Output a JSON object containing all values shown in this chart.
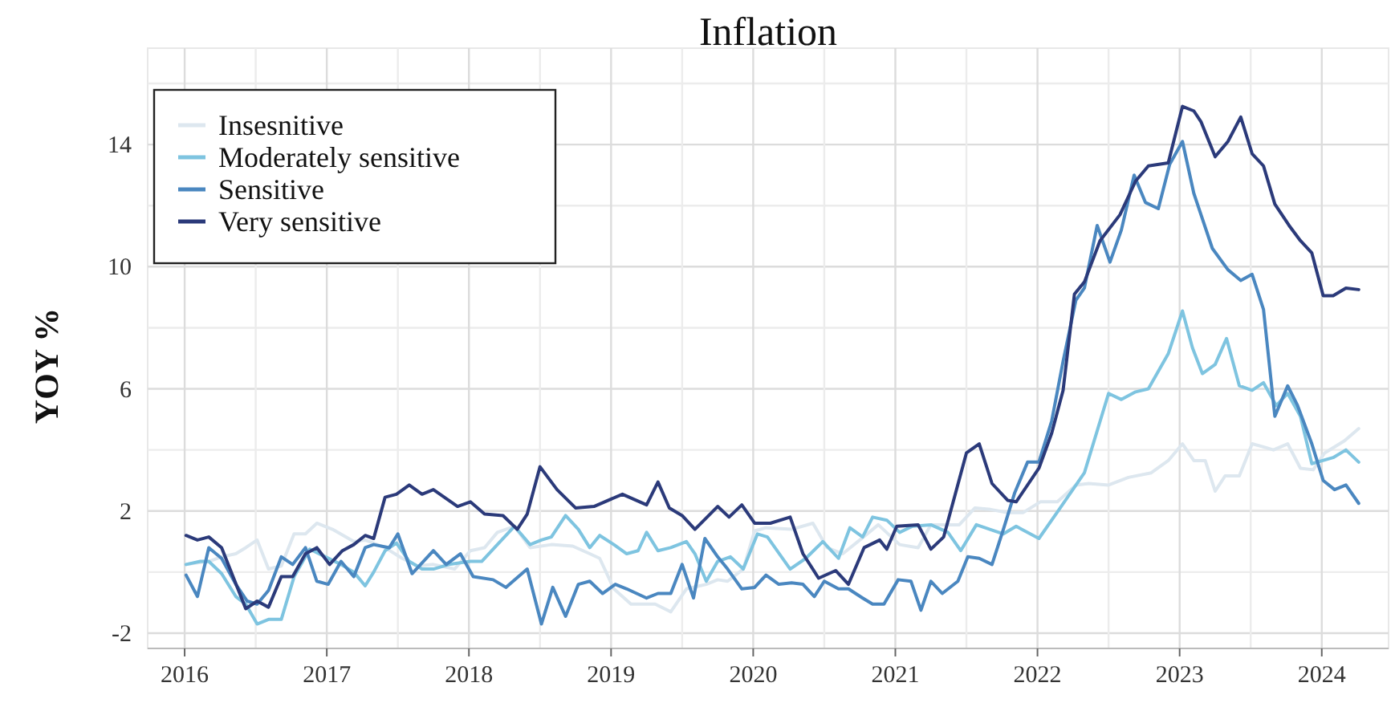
{
  "chart_data": {
    "type": "line",
    "title": "Inflation",
    "ylabel": "YOY %",
    "xlim": [
      2015.74,
      2024.47
    ],
    "ylim": [
      -2.5,
      16
    ],
    "xticks": [
      2016,
      {
        "value": 2016.5,
        "label": null
      },
      2017,
      {
        "value": 2017.5,
        "label": null
      },
      2018,
      {
        "value": 2018.5,
        "label": null
      },
      2019,
      {
        "value": 2019.5,
        "label": null
      },
      2020,
      {
        "value": 2020.5,
        "label": null
      },
      2021,
      {
        "value": 2021.5,
        "label": null
      },
      2022,
      {
        "value": 2022.5,
        "label": null
      },
      2023,
      {
        "value": 2023.5,
        "label": null
      },
      2024
    ],
    "yticks": [
      -2,
      {
        "value": 0,
        "label": null
      },
      2,
      {
        "value": 4,
        "label": null
      },
      6,
      {
        "value": 8,
        "label": null
      },
      10,
      {
        "value": 12,
        "label": null
      },
      14,
      {
        "value": 16,
        "label": null
      }
    ],
    "grid": true,
    "legend": "top left",
    "line_style": "solid",
    "marker": "none",
    "series": [
      {
        "name": "Insesnitive",
        "color": "#dde7ef",
        "x": [
          2016.01,
          2016.17,
          2016.26,
          2016.36,
          2016.43,
          2016.51,
          2016.59,
          2016.68,
          2016.77,
          2016.85,
          2016.93,
          2017.04,
          2017.19,
          2017.27,
          2017.41,
          2017.53,
          2017.64,
          2017.75,
          2017.9,
          2018.01,
          2018.11,
          2018.2,
          2018.32,
          2018.43,
          2018.58,
          2018.73,
          2018.85,
          2018.92,
          2019.02,
          2019.14,
          2019.31,
          2019.42,
          2019.53,
          2019.67,
          2019.75,
          2019.82,
          2019.93,
          2020.01,
          2020.09,
          2020.27,
          2020.42,
          2020.52,
          2020.63,
          2020.75,
          2020.88,
          2021.03,
          2021.16,
          2021.25,
          2021.45,
          2021.56,
          2021.67,
          2021.79,
          2021.9,
          2022.02,
          2022.14,
          2022.27,
          2022.36,
          2022.5,
          2022.64,
          2022.8,
          2022.92,
          2023.02,
          2023.1,
          2023.18,
          2023.25,
          2023.32,
          2023.42,
          2023.51,
          2023.59,
          2023.66,
          2023.76,
          2023.85,
          2023.94,
          2024.02,
          2024.16,
          2024.26
        ],
        "values": [
          0.25,
          0.35,
          0.5,
          0.6,
          0.8,
          1.05,
          0.1,
          0.2,
          1.25,
          1.25,
          1.6,
          1.4,
          1.0,
          1.05,
          0.8,
          0.45,
          0.2,
          0.25,
          0.1,
          0.7,
          0.8,
          1.3,
          1.5,
          0.8,
          0.9,
          0.85,
          0.6,
          0.45,
          -0.55,
          -1.05,
          -1.05,
          -1.3,
          -0.55,
          -0.4,
          -0.25,
          -0.3,
          0.1,
          1.35,
          1.45,
          1.4,
          1.6,
          0.8,
          0.6,
          1.05,
          1.55,
          0.9,
          0.8,
          1.55,
          1.55,
          2.1,
          2.05,
          1.95,
          1.95,
          2.3,
          2.3,
          2.85,
          2.9,
          2.85,
          3.1,
          3.25,
          3.65,
          4.2,
          3.65,
          3.65,
          2.65,
          3.15,
          3.15,
          4.2,
          4.1,
          4.0,
          4.2,
          3.4,
          3.35,
          3.9,
          4.3,
          4.7
        ]
      },
      {
        "name": "Moderately sensitive",
        "color": "#7ec4e0",
        "x": [
          2016.01,
          2016.11,
          2016.17,
          2016.26,
          2016.36,
          2016.43,
          2016.51,
          2016.59,
          2016.68,
          2016.77,
          2016.88,
          2016.99,
          2017.1,
          2017.19,
          2017.27,
          2017.33,
          2017.41,
          2017.49,
          2017.58,
          2017.67,
          2017.75,
          2017.86,
          2018.01,
          2018.09,
          2018.2,
          2018.32,
          2018.43,
          2018.51,
          2018.58,
          2018.68,
          2018.77,
          2018.85,
          2018.92,
          2019.02,
          2019.11,
          2019.19,
          2019.25,
          2019.33,
          2019.42,
          2019.53,
          2019.59,
          2019.67,
          2019.75,
          2019.84,
          2019.93,
          2020.03,
          2020.1,
          2020.26,
          2020.37,
          2020.49,
          2020.6,
          2020.68,
          2020.77,
          2020.84,
          2020.94,
          2021.03,
          2021.12,
          2021.25,
          2021.37,
          2021.46,
          2021.57,
          2021.76,
          2021.85,
          2022.01,
          2022.16,
          2022.33,
          2022.5,
          2022.59,
          2022.69,
          2022.78,
          2022.92,
          2023.02,
          2023.09,
          2023.16,
          2023.25,
          2023.33,
          2023.42,
          2023.51,
          2023.59,
          2023.68,
          2023.76,
          2023.85,
          2023.93,
          2024.08,
          2024.17,
          2024.26
        ],
        "values": [
          0.25,
          0.35,
          0.35,
          -0.05,
          -0.8,
          -1.05,
          -1.7,
          -1.55,
          -1.55,
          -0.15,
          0.75,
          0.5,
          0.25,
          0,
          -0.45,
          0,
          0.7,
          0.95,
          0.35,
          0.1,
          0.1,
          0.25,
          0.35,
          0.35,
          0.9,
          1.5,
          0.9,
          1.05,
          1.15,
          1.85,
          1.4,
          0.8,
          1.2,
          0.9,
          0.6,
          0.7,
          1.3,
          0.7,
          0.8,
          1.0,
          0.6,
          -0.3,
          0.35,
          0.5,
          0.1,
          1.25,
          1.15,
          0.1,
          0.45,
          1.0,
          0.45,
          1.45,
          1.15,
          1.8,
          1.7,
          1.3,
          1.5,
          1.55,
          1.3,
          0.7,
          1.55,
          1.25,
          1.5,
          1.1,
          2.1,
          3.25,
          5.85,
          5.65,
          5.9,
          6.0,
          7.15,
          8.55,
          7.35,
          6.5,
          6.8,
          7.65,
          6.1,
          5.95,
          6.2,
          5.45,
          5.85,
          5.1,
          3.55,
          3.75,
          4.0,
          3.6
        ]
      },
      {
        "name": "Sensitive",
        "color": "#4a87c0",
        "x": [
          2016.01,
          2016.09,
          2016.17,
          2016.26,
          2016.36,
          2016.44,
          2016.51,
          2016.59,
          2016.68,
          2016.76,
          2016.85,
          2016.93,
          2017.01,
          2017.1,
          2017.19,
          2017.27,
          2017.33,
          2017.44,
          2017.5,
          2017.6,
          2017.75,
          2017.84,
          2017.94,
          2018.03,
          2018.17,
          2018.26,
          2018.41,
          2018.51,
          2018.59,
          2018.68,
          2018.77,
          2018.85,
          2018.94,
          2019.03,
          2019.11,
          2019.25,
          2019.33,
          2019.42,
          2019.5,
          2019.58,
          2019.66,
          2019.75,
          2019.82,
          2019.92,
          2020.01,
          2020.09,
          2020.18,
          2020.27,
          2020.35,
          2020.43,
          2020.5,
          2020.6,
          2020.67,
          2020.77,
          2020.84,
          2020.92,
          2021.02,
          2021.11,
          2021.18,
          2021.25,
          2021.33,
          2021.44,
          2021.51,
          2021.59,
          2021.68,
          2021.76,
          2021.84,
          2021.93,
          2022.01,
          2022.1,
          2022.18,
          2022.27,
          2022.33,
          2022.42,
          2022.51,
          2022.59,
          2022.68,
          2022.76,
          2022.85,
          2022.93,
          2023.02,
          2023.1,
          2023.23,
          2023.34,
          2023.43,
          2023.51,
          2023.59,
          2023.67,
          2023.76,
          2023.83,
          2023.93,
          2024.01,
          2024.09,
          2024.17,
          2024.26
        ],
        "values": [
          -0.1,
          -0.8,
          0.8,
          0.45,
          -0.4,
          -0.95,
          -1.05,
          -0.6,
          0.5,
          0.25,
          0.8,
          -0.3,
          -0.4,
          0.35,
          -0.15,
          0.8,
          0.9,
          0.8,
          1.25,
          -0.05,
          0.7,
          0.25,
          0.6,
          -0.15,
          -0.25,
          -0.5,
          0.1,
          -1.7,
          -0.5,
          -1.45,
          -0.4,
          -0.3,
          -0.7,
          -0.4,
          -0.55,
          -0.85,
          -0.7,
          -0.7,
          0.25,
          -0.85,
          1.1,
          0.5,
          0.1,
          -0.55,
          -0.5,
          -0.1,
          -0.4,
          -0.35,
          -0.4,
          -0.8,
          -0.3,
          -0.55,
          -0.55,
          -0.85,
          -1.05,
          -1.05,
          -0.25,
          -0.3,
          -1.25,
          -0.3,
          -0.7,
          -0.3,
          0.5,
          0.45,
          0.25,
          1.4,
          2.6,
          3.6,
          3.6,
          4.95,
          6.9,
          8.9,
          9.3,
          11.35,
          10.15,
          11.2,
          13.0,
          12.1,
          11.9,
          13.35,
          14.1,
          12.4,
          10.6,
          9.9,
          9.55,
          9.75,
          8.6,
          5.1,
          6.1,
          5.45,
          4.2,
          3.0,
          2.7,
          2.85,
          2.25
        ]
      },
      {
        "name": "Very sensitive",
        "color": "#2b3a7a",
        "x": [
          2016.01,
          2016.09,
          2016.17,
          2016.26,
          2016.43,
          2016.51,
          2016.59,
          2016.68,
          2016.76,
          2016.85,
          2016.93,
          2017.02,
          2017.11,
          2017.19,
          2017.27,
          2017.33,
          2017.41,
          2017.49,
          2017.58,
          2017.67,
          2017.75,
          2017.92,
          2018.01,
          2018.11,
          2018.24,
          2018.34,
          2018.41,
          2018.5,
          2018.62,
          2018.75,
          2018.88,
          2019.08,
          2019.25,
          2019.33,
          2019.41,
          2019.5,
          2019.59,
          2019.75,
          2019.83,
          2019.92,
          2020.01,
          2020.12,
          2020.26,
          2020.35,
          2020.46,
          2020.58,
          2020.67,
          2020.78,
          2020.89,
          2020.94,
          2021.01,
          2021.16,
          2021.25,
          2021.34,
          2021.5,
          2021.59,
          2021.68,
          2021.79,
          2021.85,
          2022.01,
          2022.1,
          2022.18,
          2022.26,
          2022.33,
          2022.44,
          2022.58,
          2022.69,
          2022.78,
          2022.92,
          2023.02,
          2023.1,
          2023.15,
          2023.25,
          2023.34,
          2023.43,
          2023.51,
          2023.59,
          2023.67,
          2023.77,
          2023.85,
          2023.93,
          2024.01,
          2024.08,
          2024.17,
          2024.26
        ],
        "values": [
          1.2,
          1.05,
          1.15,
          0.8,
          -1.2,
          -0.95,
          -1.15,
          -0.15,
          -0.15,
          0.6,
          0.8,
          0.25,
          0.7,
          0.9,
          1.2,
          1.1,
          2.45,
          2.55,
          2.85,
          2.55,
          2.7,
          2.15,
          2.3,
          1.9,
          1.85,
          1.4,
          1.9,
          3.45,
          2.7,
          2.1,
          2.15,
          2.55,
          2.2,
          2.95,
          2.1,
          1.85,
          1.4,
          2.15,
          1.8,
          2.2,
          1.6,
          1.6,
          1.8,
          0.6,
          -0.2,
          0.05,
          -0.4,
          0.8,
          1.05,
          0.75,
          1.5,
          1.55,
          0.75,
          1.15,
          3.9,
          4.2,
          2.9,
          2.35,
          2.3,
          3.4,
          4.55,
          5.95,
          9.1,
          9.5,
          10.85,
          11.7,
          12.8,
          13.3,
          13.4,
          15.25,
          15.1,
          14.75,
          13.6,
          14.1,
          14.9,
          13.7,
          13.3,
          12.05,
          11.35,
          10.85,
          10.45,
          9.05,
          9.05,
          9.3,
          9.25
        ]
      }
    ]
  }
}
